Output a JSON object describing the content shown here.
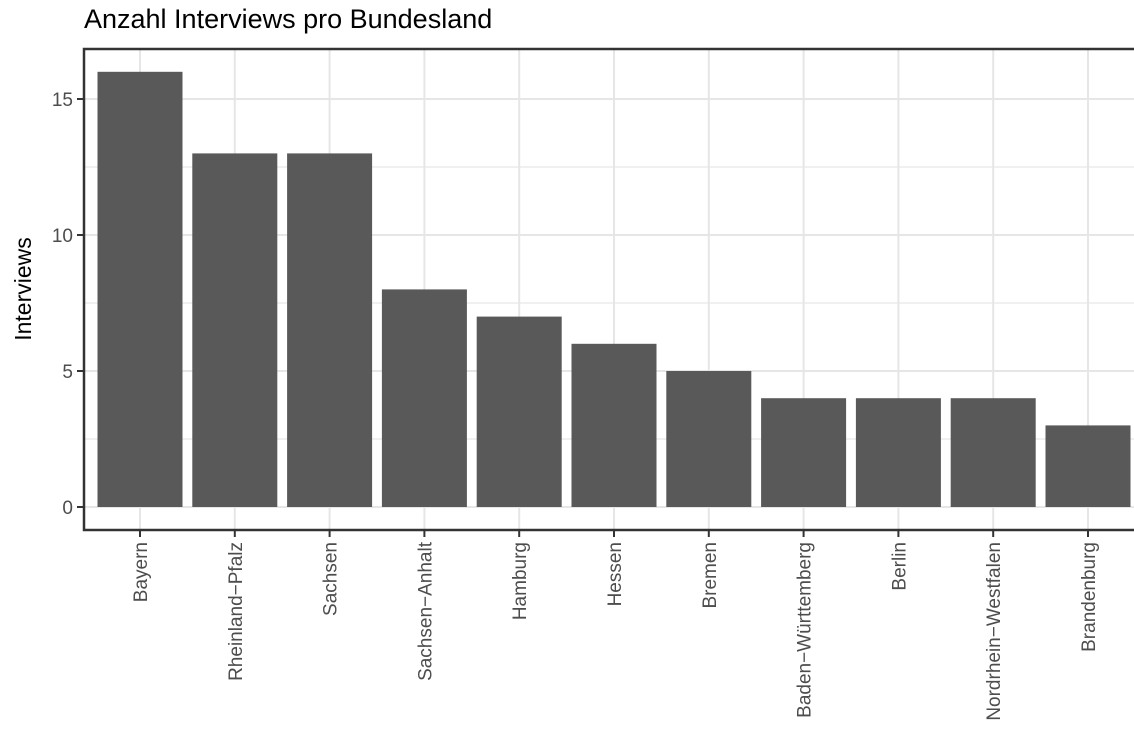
{
  "chart_data": {
    "type": "bar",
    "title": "Anzahl Interviews pro Bundesland",
    "xlabel": "",
    "ylabel": "Interviews",
    "categories": [
      "Bayern",
      "Rheinland−Pfalz",
      "Sachsen",
      "Sachsen−Anhalt",
      "Hamburg",
      "Hessen",
      "Bremen",
      "Baden−Württemberg",
      "Berlin",
      "Nordrhein−Westfalen",
      "Brandenburg"
    ],
    "values": [
      16,
      13,
      13,
      8,
      7,
      6,
      5,
      4,
      4,
      4,
      3
    ],
    "ylim": [
      0,
      16
    ],
    "yticks": [
      0,
      5,
      10,
      15
    ],
    "grid": true,
    "legend": "none",
    "colors": {
      "bar": "#595959",
      "panel_border": "#333333",
      "grid": "#ebebeb",
      "tick_label": "#4d4d4d"
    }
  }
}
